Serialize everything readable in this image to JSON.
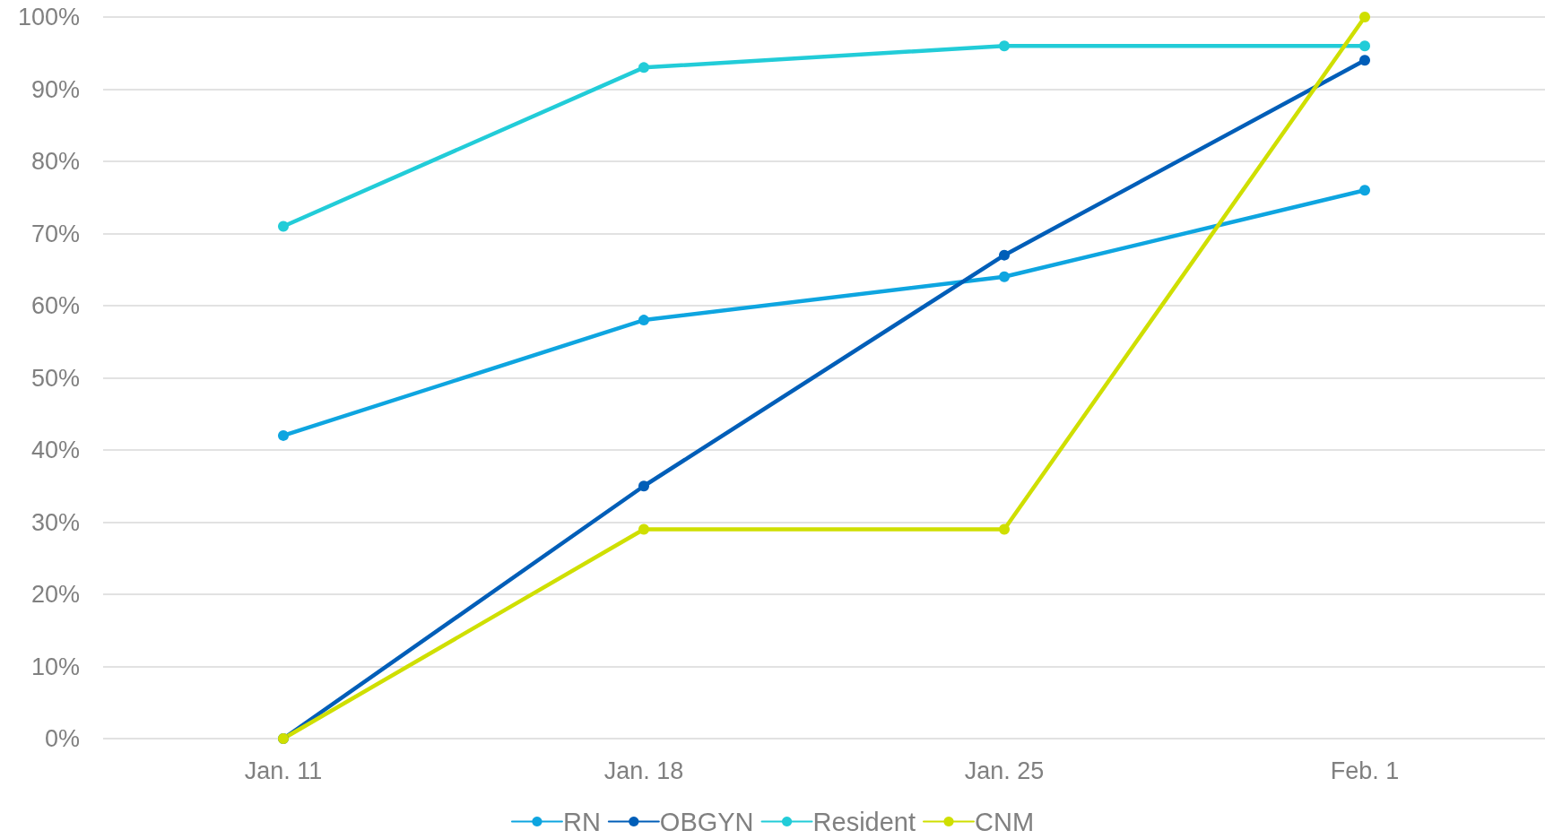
{
  "chart_data": {
    "type": "line",
    "categories": [
      "Jan. 11",
      "Jan. 18",
      "Jan. 25",
      "Feb. 1"
    ],
    "series": [
      {
        "name": "RN",
        "color": "#0ea5e0",
        "values": [
          42,
          58,
          64,
          76
        ]
      },
      {
        "name": "OBGYN",
        "color": "#005eb8",
        "values": [
          0,
          35,
          67,
          94
        ]
      },
      {
        "name": "Resident",
        "color": "#22ccd8",
        "values": [
          71,
          93,
          96,
          96
        ]
      },
      {
        "name": "CNM",
        "color": "#cfdf00",
        "values": [
          0,
          29,
          29,
          100
        ]
      }
    ],
    "ylim": [
      0,
      100
    ],
    "yticks": [
      {
        "value": 0,
        "label": "0%"
      },
      {
        "value": 10,
        "label": "10%"
      },
      {
        "value": 20,
        "label": "20%"
      },
      {
        "value": 30,
        "label": "30%"
      },
      {
        "value": 40,
        "label": "40%"
      },
      {
        "value": 50,
        "label": "50%"
      },
      {
        "value": 60,
        "label": "60%"
      },
      {
        "value": 70,
        "label": "70%"
      },
      {
        "value": 80,
        "label": "80%"
      },
      {
        "value": 90,
        "label": "90%"
      },
      {
        "value": 100,
        "label": "100%"
      }
    ],
    "grid": "y",
    "legend": "bottom",
    "marker": "circle",
    "line_style": "solid"
  }
}
